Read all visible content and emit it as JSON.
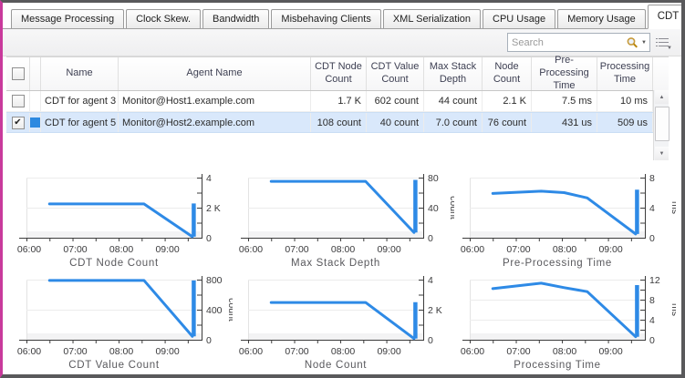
{
  "tabs": {
    "labels": [
      "Message Processing",
      "Clock Skew.",
      "Bandwidth",
      "Misbehaving Clients",
      "XML Serialization",
      "CPU Usage",
      "Memory Usage",
      "CDT Submission"
    ],
    "active": "CDT Submission"
  },
  "toolbar": {
    "search_placeholder": "Search",
    "search_icon": "magnifier-icon",
    "search_dropdown_glyph": "▼",
    "column_chooser_icon": "column-chooser-icon",
    "column_chooser_glyph": "▼"
  },
  "table": {
    "columns": [
      "Name",
      "Agent Name",
      "CDT Node Count",
      "CDT Value Count",
      "Max Stack Depth",
      "Node Count",
      "Pre-Processing Time",
      "Processing Time"
    ],
    "rows": [
      {
        "checked": false,
        "selected": false,
        "swatch": null,
        "cells": [
          "CDT for agent 3",
          "Monitor@Host1.example.com",
          "1.7 K",
          "602 count",
          "44 count",
          "2.1 K",
          "7.5 ms",
          "10 ms"
        ]
      },
      {
        "checked": true,
        "selected": true,
        "swatch": "#2d89e0",
        "cells": [
          "CDT for agent 5",
          "Monitor@Host2.example.com",
          "108 count",
          "40 count",
          "7.0 count",
          "76 count",
          "431 us",
          "509 us"
        ]
      }
    ]
  },
  "scrollbar": {
    "up_glyph": "▲",
    "down_glyph": "▼"
  },
  "glyphs": {
    "check": "✔"
  },
  "colors": {
    "series_line": "#2e8ae6",
    "selected_row_bg": "#d9e8fb",
    "swatch_blue": "#2d89e0"
  },
  "chart_data": {
    "x_axis": {
      "min": 6,
      "max": 9.8,
      "tick_step": 0.5,
      "tick_max": 9.5,
      "labels": [
        {
          "v": 6,
          "label": "06:00"
        },
        {
          "v": 7,
          "label": "07:00"
        },
        {
          "v": 8,
          "label": "08:00"
        },
        {
          "v": 9,
          "label": "09:00"
        }
      ]
    },
    "charts": [
      {
        "type": "line",
        "title": "CDT Node Count",
        "ylabel": "",
        "ylim": [
          0,
          4000
        ],
        "yticks": [
          {
            "v": 0,
            "label": "0"
          },
          {
            "v": 1000,
            "label": ""
          },
          {
            "v": 2000,
            "label": "2 K"
          },
          {
            "v": 3000,
            "label": ""
          },
          {
            "v": 4000,
            "label": "4"
          }
        ],
        "line": [
          [
            6.5,
            2250
          ],
          [
            8.55,
            2250
          ],
          [
            9.6,
            70
          ]
        ],
        "spike": {
          "x": 9.63,
          "y0": 70,
          "y1": 2280
        }
      },
      {
        "type": "line",
        "title": "Max Stack Depth",
        "ylabel": "count",
        "ylim": [
          0,
          80
        ],
        "yticks": [
          {
            "v": 0,
            "label": "0"
          },
          {
            "v": 20,
            "label": ""
          },
          {
            "v": 40,
            "label": "40"
          },
          {
            "v": 60,
            "label": ""
          },
          {
            "v": 80,
            "label": "80"
          }
        ],
        "line": [
          [
            6.5,
            75
          ],
          [
            8.55,
            75
          ],
          [
            9.6,
            7
          ]
        ],
        "spike": {
          "x": 9.63,
          "y0": 7,
          "y1": 77
        }
      },
      {
        "type": "line",
        "title": "Pre-Processing Time",
        "ylabel": "ms",
        "ylim": [
          0,
          8
        ],
        "yticks": [
          {
            "v": 0,
            "label": "0"
          },
          {
            "v": 2,
            "label": ""
          },
          {
            "v": 4,
            "label": "4"
          },
          {
            "v": 6,
            "label": ""
          },
          {
            "v": 8,
            "label": "8"
          }
        ],
        "line": [
          [
            6.5,
            5.9
          ],
          [
            7.55,
            6.2
          ],
          [
            8.05,
            6.0
          ],
          [
            8.55,
            5.3
          ],
          [
            9.6,
            0.5
          ]
        ],
        "spike": {
          "x": 9.63,
          "y0": 0.5,
          "y1": 6.4
        }
      },
      {
        "type": "line",
        "title": "CDT Value Count",
        "ylabel": "count",
        "ylim": [
          0,
          800
        ],
        "yticks": [
          {
            "v": 0,
            "label": "0"
          },
          {
            "v": 200,
            "label": ""
          },
          {
            "v": 400,
            "label": "400"
          },
          {
            "v": 600,
            "label": ""
          },
          {
            "v": 800,
            "label": "800"
          }
        ],
        "line": [
          [
            6.5,
            790
          ],
          [
            8.55,
            790
          ],
          [
            9.6,
            45
          ]
        ],
        "spike": {
          "x": 9.63,
          "y0": 45,
          "y1": 790
        }
      },
      {
        "type": "line",
        "title": "Node Count",
        "ylabel": "",
        "ylim": [
          0,
          4000
        ],
        "yticks": [
          {
            "v": 0,
            "label": "0"
          },
          {
            "v": 1000,
            "label": ""
          },
          {
            "v": 2000,
            "label": "2 K"
          },
          {
            "v": 3000,
            "label": ""
          },
          {
            "v": 4000,
            "label": "4"
          }
        ],
        "line": [
          [
            6.5,
            2480
          ],
          [
            8.55,
            2480
          ],
          [
            9.6,
            80
          ]
        ],
        "spike": {
          "x": 9.63,
          "y0": 80,
          "y1": 2500
        }
      },
      {
        "type": "line",
        "title": "Processing Time",
        "ylabel": "ms",
        "ylim": [
          0,
          12
        ],
        "yticks": [
          {
            "v": 0,
            "label": "0"
          },
          {
            "v": 2,
            "label": ""
          },
          {
            "v": 4,
            "label": "4"
          },
          {
            "v": 6,
            "label": ""
          },
          {
            "v": 8,
            "label": "8"
          },
          {
            "v": 10,
            "label": ""
          },
          {
            "v": 12,
            "label": "12"
          }
        ],
        "line": [
          [
            6.5,
            10.2
          ],
          [
            7.55,
            11.3
          ],
          [
            8.05,
            10.4
          ],
          [
            8.55,
            9.6
          ],
          [
            9.6,
            0.6
          ]
        ],
        "spike": {
          "x": 9.63,
          "y0": 0.6,
          "y1": 10.9
        }
      }
    ]
  }
}
